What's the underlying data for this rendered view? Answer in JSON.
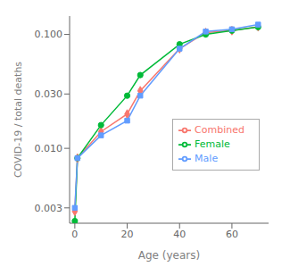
{
  "chart_data": {
    "type": "line",
    "xlabel": "Age (years)",
    "ylabel": "COVID-19 / total deaths",
    "x": [
      0,
      1,
      10,
      20,
      25,
      40,
      50,
      60,
      70
    ],
    "series": [
      {
        "name": "Combined",
        "color": "#F8766D",
        "marker": "diamond",
        "values": [
          0.0028,
          0.0082,
          0.014,
          0.02,
          0.032,
          0.075,
          0.104,
          0.108,
          0.117
        ]
      },
      {
        "name": "Female",
        "color": "#00BA38",
        "marker": "circle",
        "values": [
          0.0023,
          0.0082,
          0.016,
          0.029,
          0.044,
          0.082,
          0.1,
          0.108,
          0.116
        ]
      },
      {
        "name": "Male",
        "color": "#619CFF",
        "marker": "square",
        "values": [
          0.003,
          0.0082,
          0.013,
          0.0175,
          0.029,
          0.075,
          0.106,
          0.111,
          0.122
        ]
      }
    ],
    "xlim": [
      -2,
      74
    ],
    "xticks": [
      0,
      20,
      40,
      60
    ],
    "ylim": [
      0.0022,
      0.145
    ],
    "yticks": [
      0.003,
      {
        "value": 0.01,
        "label": "0.010"
      },
      {
        "value": 0.03,
        "label": "0.030"
      },
      {
        "value": 0.1,
        "label": "0.100"
      }
    ],
    "log": "y",
    "grid": false,
    "legend": "right"
  }
}
